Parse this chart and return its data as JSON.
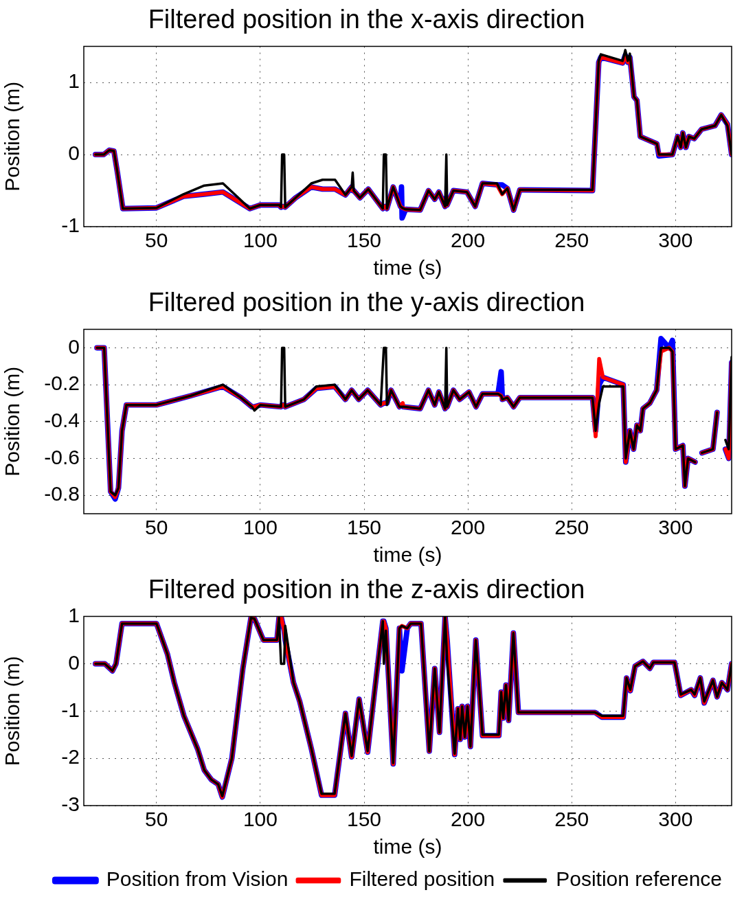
{
  "chart_data": [
    {
      "type": "line",
      "title": "Filtered position in the x-axis direction",
      "xlabel": "time (s)",
      "ylabel": "Position (m)",
      "xlim": [
        15,
        327
      ],
      "xticks": [
        50,
        100,
        150,
        200,
        250,
        300
      ],
      "ylim": [
        -1,
        1.5
      ],
      "yticks": [
        -1,
        0,
        1
      ],
      "grid": true,
      "x": [
        20.6,
        24.6,
        27.2,
        29.5,
        31.2,
        33.8,
        50,
        63,
        73,
        82,
        95,
        100,
        109,
        110,
        110.5,
        111.5,
        112,
        117,
        124.6,
        130,
        136,
        141,
        144,
        144.5,
        145,
        148,
        152,
        159,
        159.5,
        160.5,
        161,
        164,
        167.5,
        168,
        168.3,
        170,
        177,
        181,
        184,
        186,
        189,
        189.6,
        190,
        193,
        199.5,
        203.5,
        207,
        214,
        216.5,
        219,
        222,
        225,
        260,
        263,
        264,
        274.5,
        275.8,
        277,
        278,
        280,
        281.4,
        283,
        291,
        292,
        298.5,
        301,
        302.5,
        303.5,
        305,
        306.5,
        309,
        312.5,
        319,
        322,
        325,
        327
      ],
      "series": [
        {
          "color": "#0000ff",
          "values": [
            0,
            0,
            0.06,
            0.05,
            -0.25,
            -0.75,
            -0.74,
            -0.58,
            -0.55,
            -0.52,
            -0.75,
            -0.7,
            -0.7,
            -0.73,
            -0.72,
            -0.72,
            -0.73,
            -0.6,
            -0.45,
            -0.48,
            -0.48,
            -0.56,
            -0.45,
            -0.5,
            -0.5,
            -0.6,
            -0.48,
            -0.75,
            -0.72,
            -0.72,
            -0.75,
            -0.45,
            -0.72,
            -0.45,
            -0.88,
            -0.76,
            -0.77,
            -0.5,
            -0.62,
            -0.52,
            -0.72,
            -0.6,
            -0.7,
            -0.5,
            -0.52,
            -0.72,
            -0.4,
            -0.42,
            -0.42,
            -0.47,
            -0.77,
            -0.49,
            -0.5,
            1.28,
            1.35,
            1.27,
            1.38,
            1.28,
            1.35,
            0.8,
            0.75,
            0.25,
            0.15,
            -0.02,
            0,
            0.25,
            0.1,
            0.3,
            0.1,
            0.25,
            0.22,
            0.35,
            0.4,
            0.55,
            0.42,
            0
          ]
        },
        {
          "color": "#ff0000",
          "values": [
            0,
            0,
            0.06,
            0.05,
            -0.25,
            -0.75,
            -0.74,
            -0.58,
            -0.55,
            -0.52,
            -0.75,
            -0.7,
            -0.7,
            -0.73,
            -0.72,
            -0.72,
            -0.73,
            -0.6,
            -0.45,
            -0.48,
            -0.48,
            -0.56,
            -0.45,
            -0.5,
            -0.5,
            -0.6,
            -0.48,
            -0.75,
            -0.72,
            -0.72,
            -0.75,
            -0.45,
            -0.72,
            -0.73,
            -0.74,
            -0.76,
            -0.77,
            -0.5,
            -0.62,
            -0.52,
            -0.72,
            -0.6,
            -0.7,
            -0.5,
            -0.52,
            -0.72,
            -0.4,
            -0.42,
            -0.55,
            -0.47,
            -0.77,
            -0.49,
            -0.5,
            1.28,
            1.35,
            1.27,
            1.38,
            1.28,
            1.35,
            0.8,
            0.75,
            0.25,
            0.15,
            0,
            0,
            0.25,
            0.1,
            0.3,
            0.1,
            0.25,
            0.22,
            0.35,
            0.4,
            0.55,
            0.42,
            0
          ]
        },
        {
          "color": "#000000",
          "values": [
            0,
            0,
            0.06,
            0.05,
            -0.25,
            -0.75,
            -0.74,
            -0.55,
            -0.43,
            -0.4,
            -0.75,
            -0.7,
            -0.7,
            -0.73,
            0,
            0,
            -0.73,
            -0.6,
            -0.4,
            -0.35,
            -0.35,
            -0.56,
            -0.45,
            -0.25,
            -0.5,
            -0.6,
            -0.48,
            -0.75,
            0,
            0,
            -0.75,
            -0.45,
            -0.72,
            -0.73,
            -0.74,
            -0.76,
            -0.77,
            -0.5,
            -0.62,
            -0.52,
            -0.72,
            0,
            -0.7,
            -0.5,
            -0.52,
            -0.72,
            -0.4,
            -0.4,
            -0.55,
            -0.47,
            -0.77,
            -0.49,
            -0.49,
            1.3,
            1.39,
            1.3,
            1.45,
            1.3,
            1.4,
            0.8,
            0.75,
            0.25,
            0.15,
            0,
            0,
            0.25,
            0.1,
            0.3,
            0.1,
            0.25,
            0.22,
            0.35,
            0.4,
            0.55,
            0.4,
            0
          ]
        }
      ]
    },
    {
      "type": "line",
      "title": "Filtered position in the y-axis direction",
      "xlabel": "time (s)",
      "ylabel": "Position (m)",
      "xlim": [
        15,
        327
      ],
      "xticks": [
        50,
        100,
        150,
        200,
        250,
        300
      ],
      "ylim": [
        -0.9,
        0.1
      ],
      "yticks": [
        -0.8,
        -0.6,
        -0.4,
        -0.2,
        0
      ],
      "grid": true,
      "x": [
        21.3,
        24.8,
        27.9,
        30.1,
        31.7,
        33.4,
        35.5,
        50,
        66.5,
        82,
        90.6,
        96,
        97.2,
        100,
        110,
        110.5,
        111.5,
        112,
        121,
        127,
        135.8,
        141,
        144,
        147.4,
        151.7,
        158,
        159.5,
        160.5,
        161,
        163,
        167,
        168.6,
        169,
        177,
        181,
        184,
        186,
        189,
        189.6,
        190,
        193,
        196,
        200.5,
        203.9,
        207,
        214.5,
        216,
        216.6,
        219,
        222,
        225,
        260,
        261.5,
        263.2,
        265,
        274.8,
        276,
        278,
        279.8,
        281.4,
        283,
        284.3,
        287.6,
        290.9,
        293,
        296.9,
        298.5,
        300,
        303.5,
        304.5,
        306,
        309.4,
        311,
        312.7,
        318,
        320,
        321,
        324,
        325.6,
        327
      ],
      "series": [
        {
          "color": "#0000ff",
          "values": [
            0,
            0,
            -0.78,
            -0.82,
            -0.76,
            -0.45,
            -0.31,
            -0.31,
            -0.26,
            -0.21,
            -0.27,
            -0.32,
            -0.32,
            -0.31,
            -0.32,
            -0.31,
            -0.31,
            -0.32,
            -0.28,
            -0.22,
            -0.21,
            -0.28,
            -0.23,
            -0.28,
            -0.23,
            -0.31,
            -0.3,
            -0.3,
            -0.3,
            -0.23,
            -0.32,
            null,
            -0.32,
            -0.33,
            -0.23,
            -0.31,
            -0.24,
            -0.33,
            -0.3,
            -0.32,
            -0.23,
            -0.28,
            -0.24,
            -0.32,
            -0.25,
            -0.25,
            -0.13,
            -0.28,
            -0.27,
            -0.32,
            -0.27,
            -0.27,
            -0.45,
            -0.2,
            -0.16,
            -0.2,
            -0.62,
            -0.45,
            -0.55,
            -0.42,
            -0.45,
            -0.33,
            -0.3,
            -0.23,
            0.05,
            0,
            0.04,
            -0.55,
            -0.53,
            -0.75,
            -0.6,
            -0.62,
            null,
            -0.57,
            -0.55,
            -0.35,
            null,
            -0.55,
            -0.6,
            -0.08
          ]
        },
        {
          "color": "#ff0000",
          "values": [
            0,
            0,
            -0.78,
            -0.81,
            -0.76,
            -0.45,
            -0.31,
            -0.31,
            -0.26,
            -0.21,
            -0.27,
            -0.32,
            -0.32,
            -0.31,
            -0.32,
            -0.31,
            -0.31,
            -0.32,
            -0.28,
            -0.22,
            -0.21,
            -0.28,
            -0.23,
            -0.28,
            -0.23,
            -0.31,
            -0.3,
            -0.3,
            -0.3,
            -0.23,
            -0.32,
            -0.3,
            -0.32,
            -0.33,
            -0.23,
            -0.31,
            -0.24,
            -0.33,
            -0.3,
            -0.32,
            -0.23,
            -0.28,
            -0.24,
            -0.32,
            -0.25,
            -0.25,
            -0.26,
            -0.28,
            -0.27,
            -0.32,
            -0.27,
            -0.27,
            -0.48,
            -0.06,
            -0.16,
            -0.2,
            -0.62,
            -0.45,
            -0.55,
            -0.42,
            -0.45,
            -0.33,
            -0.3,
            -0.23,
            -0.02,
            0,
            -0.02,
            -0.55,
            -0.53,
            -0.75,
            -0.6,
            -0.62,
            null,
            -0.57,
            -0.55,
            -0.35,
            null,
            -0.55,
            -0.6,
            -0.08
          ]
        },
        {
          "color": "#000000",
          "values": [
            0,
            0,
            -0.78,
            -0.8,
            -0.76,
            -0.45,
            -0.31,
            -0.31,
            -0.26,
            -0.2,
            -0.27,
            -0.32,
            -0.34,
            -0.31,
            -0.32,
            0,
            0,
            -0.32,
            -0.28,
            -0.21,
            -0.2,
            -0.28,
            -0.23,
            -0.28,
            -0.23,
            -0.31,
            0,
            0,
            -0.31,
            -0.23,
            -0.32,
            -0.32,
            -0.32,
            -0.33,
            -0.23,
            -0.31,
            -0.24,
            -0.33,
            0,
            -0.32,
            -0.23,
            -0.28,
            -0.24,
            -0.32,
            -0.25,
            -0.25,
            -0.26,
            -0.28,
            -0.27,
            -0.32,
            -0.27,
            -0.27,
            -0.45,
            -0.3,
            -0.21,
            -0.21,
            -0.6,
            -0.45,
            -0.55,
            -0.42,
            -0.45,
            -0.33,
            -0.3,
            -0.23,
            0,
            0,
            -0.02,
            -0.55,
            -0.53,
            -0.75,
            -0.6,
            -0.62,
            null,
            -0.57,
            -0.55,
            -0.35,
            null,
            -0.5,
            -0.55,
            -0.05
          ]
        }
      ]
    },
    {
      "type": "line",
      "title": "Filtered position in the z-axis direction",
      "xlabel": "time (s)",
      "ylabel": "Position (m)",
      "xlim": [
        15,
        327
      ],
      "xticks": [
        50,
        100,
        150,
        200,
        250,
        300
      ],
      "ylim": [
        -3,
        1
      ],
      "yticks": [
        -3,
        -2,
        -1,
        0,
        1
      ],
      "grid": true,
      "legend": "bottom right",
      "x": [
        20.6,
        25.1,
        28.8,
        30.5,
        33.4,
        50,
        55.3,
        58.6,
        63.2,
        69.8,
        73,
        76.4,
        79.7,
        81.7,
        86.3,
        91.6,
        95.5,
        97.2,
        101.5,
        108,
        109,
        110,
        111.5,
        112,
        116,
        119,
        124.6,
        129.5,
        135.8,
        141,
        144,
        147.6,
        151.7,
        155,
        159,
        159.5,
        160.5,
        164,
        167,
        168.2,
        170.8,
        172.4,
        177.4,
        181.4,
        184,
        186.3,
        189,
        190,
        193.6,
        195.2,
        196.3,
        197.2,
        198.5,
        199.8,
        201.2,
        203.8,
        207,
        214.9,
        216,
        217,
        218.3,
        219.6,
        221.9,
        224.3,
        261.2,
        264.5,
        274.8,
        276.4,
        278.2,
        280.5,
        284.3,
        287.6,
        289.3,
        299.5,
        302.5,
        307.5,
        309.2,
        311.9,
        313.8,
        318,
        320,
        322.3,
        325,
        327
      ],
      "series": [
        {
          "name": "Position from Vision",
          "color": "#0000ff",
          "values": [
            0,
            0,
            -0.15,
            0,
            0.85,
            0.85,
            0.2,
            -0.4,
            -1.1,
            -1.8,
            -2.25,
            -2.45,
            -2.55,
            -2.82,
            -2.0,
            -0.1,
            0.97,
            0.95,
            0.5,
            0.5,
            0.97,
            1.0,
            0.7,
            0.5,
            -0.4,
            -0.8,
            -1.8,
            -2.78,
            -2.78,
            -1.05,
            -1.97,
            -0.75,
            -1.87,
            -0.6,
            0.9,
            0.9,
            0.75,
            -2.12,
            0.75,
            -0.15,
            0.75,
            0.85,
            0.85,
            -1.85,
            -0.1,
            -1.45,
            1.0,
            0.5,
            -1.92,
            -0.95,
            -1.6,
            -0.9,
            -1.55,
            -0.9,
            -1.75,
            0.5,
            -1.52,
            -1.52,
            -0.6,
            -1.15,
            -0.45,
            -1.2,
            0.65,
            -1.03,
            -1.03,
            -1.13,
            -1.13,
            -0.3,
            -0.57,
            -0.05,
            0.05,
            -0.1,
            0.03,
            0.03,
            -0.67,
            -0.55,
            -0.67,
            -0.3,
            -0.83,
            -0.35,
            -0.7,
            -0.4,
            -0.55,
            0
          ]
        },
        {
          "name": "Filtered position",
          "color": "#ff0000",
          "values": [
            0,
            0,
            -0.15,
            0,
            0.85,
            0.85,
            0.2,
            -0.4,
            -1.1,
            -1.8,
            -2.25,
            -2.45,
            -2.55,
            -2.82,
            -2.0,
            -0.1,
            0.97,
            0.95,
            0.5,
            0.5,
            0.97,
            1.0,
            0.7,
            0.5,
            -0.4,
            -0.8,
            -1.8,
            -2.78,
            -2.78,
            -1.05,
            -1.97,
            -0.75,
            -1.87,
            -0.6,
            0.9,
            0.9,
            0.75,
            -2.12,
            0.75,
            0.8,
            0.75,
            0.85,
            0.85,
            -1.85,
            -0.1,
            -1.45,
            1.0,
            0.5,
            -1.92,
            -0.95,
            -1.6,
            -0.9,
            -1.55,
            -0.9,
            -1.75,
            0.5,
            -1.52,
            -1.52,
            -0.6,
            -1.15,
            -0.45,
            -1.2,
            0.65,
            -1.03,
            -1.03,
            -1.13,
            -1.13,
            -0.3,
            -0.57,
            -0.05,
            0.05,
            -0.1,
            0.03,
            0.03,
            -0.67,
            -0.55,
            -0.67,
            -0.3,
            -0.83,
            -0.35,
            -0.7,
            -0.4,
            -0.55,
            0
          ]
        },
        {
          "name": "Position reference",
          "color": "#000000",
          "values": [
            0,
            0,
            -0.15,
            0,
            0.85,
            0.85,
            0.2,
            -0.4,
            -1.1,
            -1.8,
            -2.25,
            -2.45,
            -2.55,
            -2.8,
            -2.0,
            -0.1,
            0.97,
            0.95,
            0.5,
            0.5,
            0.97,
            0,
            0,
            0.8,
            -0.4,
            -0.8,
            -1.8,
            -2.75,
            -2.75,
            -1.05,
            -1.95,
            -0.75,
            -1.85,
            -0.6,
            0.9,
            0,
            0.7,
            -2.1,
            0.75,
            0.8,
            0.75,
            0.85,
            0.85,
            -1.85,
            -0.1,
            -1.45,
            1.0,
            0.05,
            -1.9,
            -0.95,
            -1.6,
            -0.9,
            -1.55,
            -0.9,
            -1.75,
            0.5,
            -1.5,
            -1.5,
            -0.6,
            -1.15,
            -0.45,
            -1.2,
            0.65,
            -1.03,
            -1.03,
            -1.1,
            -1.1,
            -0.3,
            -0.55,
            -0.05,
            0.05,
            -0.1,
            0.03,
            0.03,
            -0.65,
            -0.55,
            -0.65,
            -0.3,
            -0.8,
            -0.35,
            -0.7,
            -0.4,
            -0.55,
            0
          ]
        }
      ]
    }
  ]
}
